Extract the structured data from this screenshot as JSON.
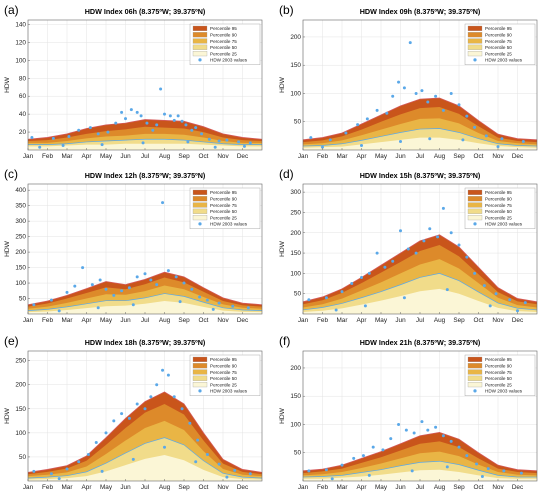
{
  "legend_labels": [
    "Percentile 95",
    "Percentile 90",
    "Percentile 75",
    "Percentile 50",
    "Percentile 25"
  ],
  "scatter_label": "HDW 2003 values",
  "colors": {
    "p95": "#c9551b",
    "p90": "#dd8a2a",
    "p75": "#e9b545",
    "p50": "#f1dc8a",
    "p25": "#fbf6d6",
    "envelope": "#d45858",
    "scatter": "#5aa8e8",
    "median_line": "#5aa8e8"
  },
  "chart_data": [
    {
      "letter": "(a)",
      "type": "area",
      "title": "HDW Index 06h (8.375ºW; 39.375ºN)",
      "ylabel": "HDW",
      "xlabels": [
        "Jan",
        "Feb",
        "Mar",
        "Apr",
        "May",
        "Jun",
        "Jul",
        "Aug",
        "Sep",
        "Oct",
        "Nov",
        "Dec"
      ],
      "yticks": [
        20,
        40,
        60,
        80,
        100,
        120,
        140
      ],
      "ylim": [
        0,
        145
      ],
      "x_months": [
        1,
        2,
        3,
        4,
        5,
        6,
        7,
        8,
        9,
        10,
        11,
        12,
        13
      ],
      "p95": [
        12,
        14,
        18,
        24,
        28,
        30,
        34,
        33,
        32,
        26,
        18,
        14,
        12
      ],
      "p90": [
        10,
        11,
        14,
        18,
        21,
        23,
        26,
        25,
        24,
        20,
        14,
        11,
        10
      ],
      "p75": [
        8,
        8,
        10,
        13,
        15,
        16,
        18,
        18,
        17,
        14,
        10,
        8,
        8
      ],
      "p50": [
        6,
        6,
        7,
        9,
        10,
        11,
        12,
        12,
        11,
        9,
        7,
        6,
        6
      ],
      "p25": [
        4,
        4,
        5,
        6,
        6,
        7,
        7,
        7,
        7,
        6,
        5,
        4,
        4
      ],
      "scatter": [
        [
          1.2,
          14
        ],
        [
          2.3,
          13
        ],
        [
          3.1,
          15
        ],
        [
          3.6,
          22
        ],
        [
          4.2,
          25
        ],
        [
          4.6,
          18
        ],
        [
          5.1,
          20
        ],
        [
          5.5,
          30
        ],
        [
          5.8,
          42
        ],
        [
          6.0,
          35
        ],
        [
          6.3,
          45
        ],
        [
          6.6,
          42
        ],
        [
          6.8,
          38
        ],
        [
          7.1,
          30
        ],
        [
          7.4,
          22
        ],
        [
          7.6,
          28
        ],
        [
          7.8,
          68
        ],
        [
          8.0,
          40
        ],
        [
          8.3,
          38
        ],
        [
          8.5,
          33
        ],
        [
          8.7,
          38
        ],
        [
          8.9,
          32
        ],
        [
          9.1,
          28
        ],
        [
          9.4,
          22
        ],
        [
          9.6,
          25
        ],
        [
          9.9,
          18
        ],
        [
          10.3,
          12
        ],
        [
          10.8,
          10
        ],
        [
          11.2,
          11
        ],
        [
          11.8,
          9
        ],
        [
          12.4,
          8
        ],
        [
          1.6,
          3
        ],
        [
          2.8,
          5
        ],
        [
          4.8,
          6
        ],
        [
          6.9,
          8
        ],
        [
          9.2,
          9
        ],
        [
          10.6,
          3
        ],
        [
          12.1,
          4
        ]
      ]
    },
    {
      "letter": "(b)",
      "type": "area",
      "title": "HDW Index 09h (8.375ºW; 39.375ºN)",
      "ylabel": "HDW",
      "xlabels": [
        "Jan",
        "Feb",
        "Mar",
        "Apr",
        "May",
        "Jun",
        "Jul",
        "Aug",
        "Sep",
        "Oct",
        "Nov",
        "Dec"
      ],
      "yticks": [
        50,
        100,
        150,
        200
      ],
      "ylim": [
        0,
        230
      ],
      "x_months": [
        1,
        2,
        3,
        4,
        5,
        6,
        7,
        8,
        9,
        10,
        11,
        12,
        13
      ],
      "p95": [
        18,
        22,
        30,
        46,
        62,
        78,
        90,
        92,
        78,
        52,
        28,
        20,
        18
      ],
      "p90": [
        14,
        17,
        24,
        36,
        50,
        63,
        74,
        76,
        64,
        42,
        22,
        16,
        14
      ],
      "p75": [
        10,
        12,
        17,
        26,
        36,
        46,
        55,
        56,
        47,
        30,
        16,
        12,
        10
      ],
      "p50": [
        7,
        8,
        11,
        17,
        24,
        31,
        37,
        38,
        31,
        20,
        11,
        8,
        7
      ],
      "p25": [
        4,
        5,
        6,
        10,
        14,
        18,
        22,
        22,
        18,
        12,
        7,
        5,
        4
      ],
      "scatter": [
        [
          1.4,
          22
        ],
        [
          2.4,
          18
        ],
        [
          3.2,
          30
        ],
        [
          3.8,
          45
        ],
        [
          4.3,
          55
        ],
        [
          4.8,
          70
        ],
        [
          5.3,
          65
        ],
        [
          5.6,
          95
        ],
        [
          5.9,
          120
        ],
        [
          6.2,
          110
        ],
        [
          6.5,
          190
        ],
        [
          6.8,
          100
        ],
        [
          7.1,
          105
        ],
        [
          7.4,
          85
        ],
        [
          7.8,
          95
        ],
        [
          8.2,
          70
        ],
        [
          8.6,
          100
        ],
        [
          9.0,
          80
        ],
        [
          9.4,
          60
        ],
        [
          9.8,
          40
        ],
        [
          10.4,
          25
        ],
        [
          11.2,
          20
        ],
        [
          12.3,
          15
        ],
        [
          2.0,
          5
        ],
        [
          4.0,
          8
        ],
        [
          6.0,
          15
        ],
        [
          7.5,
          20
        ],
        [
          9.2,
          18
        ],
        [
          11.0,
          6
        ]
      ]
    },
    {
      "letter": "(c)",
      "type": "area",
      "title": "HDW Index 12h (8.375ºW; 39.375ºN)",
      "ylabel": "HDW",
      "xlabels": [
        "Jan",
        "Feb",
        "Mar",
        "Apr",
        "May",
        "Jun",
        "Jul",
        "Aug",
        "Sep",
        "Oct",
        "Nov",
        "Dec"
      ],
      "yticks": [
        50,
        100,
        150,
        200,
        250,
        300,
        350,
        400
      ],
      "ylim": [
        0,
        420
      ],
      "x_months": [
        1,
        2,
        3,
        4,
        5,
        6,
        7,
        8,
        9,
        10,
        11,
        12,
        13
      ],
      "p95": [
        30,
        42,
        60,
        82,
        105,
        95,
        112,
        135,
        120,
        85,
        52,
        35,
        30
      ],
      "p90": [
        24,
        34,
        50,
        68,
        86,
        80,
        96,
        118,
        102,
        72,
        42,
        28,
        24
      ],
      "p75": [
        17,
        24,
        36,
        50,
        64,
        62,
        74,
        92,
        80,
        55,
        31,
        20,
        17
      ],
      "p50": [
        11,
        15,
        23,
        33,
        43,
        43,
        52,
        66,
        57,
        38,
        20,
        13,
        11
      ],
      "p25": [
        6,
        8,
        13,
        19,
        25,
        27,
        33,
        42,
        36,
        23,
        11,
        7,
        6
      ],
      "scatter": [
        [
          1.3,
          30
        ],
        [
          2.2,
          45
        ],
        [
          3.0,
          70
        ],
        [
          3.4,
          90
        ],
        [
          3.8,
          150
        ],
        [
          4.3,
          95
        ],
        [
          4.7,
          110
        ],
        [
          5.0,
          80
        ],
        [
          5.4,
          60
        ],
        [
          5.8,
          75
        ],
        [
          6.2,
          85
        ],
        [
          6.6,
          120
        ],
        [
          7.0,
          130
        ],
        [
          7.3,
          110
        ],
        [
          7.6,
          95
        ],
        [
          7.9,
          360
        ],
        [
          8.2,
          140
        ],
        [
          8.6,
          120
        ],
        [
          9.0,
          100
        ],
        [
          9.4,
          80
        ],
        [
          9.8,
          55
        ],
        [
          10.2,
          45
        ],
        [
          10.8,
          35
        ],
        [
          11.5,
          25
        ],
        [
          12.3,
          20
        ],
        [
          2.6,
          10
        ],
        [
          4.6,
          20
        ],
        [
          6.4,
          30
        ],
        [
          8.8,
          40
        ],
        [
          10.5,
          15
        ]
      ]
    },
    {
      "letter": "(d)",
      "type": "area",
      "title": "HDW Index 15h (8.375ºW; 39.375ºN)",
      "ylabel": "HDW",
      "xlabels": [
        "Jan",
        "Feb",
        "Mar",
        "Apr",
        "May",
        "Jun",
        "Jul",
        "Aug",
        "Sep",
        "Oct",
        "Nov",
        "Dec"
      ],
      "yticks": [
        50,
        100,
        150,
        200,
        250,
        300
      ],
      "ylim": [
        0,
        320
      ],
      "x_months": [
        1,
        2,
        3,
        4,
        5,
        6,
        7,
        8,
        9,
        10,
        11,
        12,
        13
      ],
      "p95": [
        30,
        42,
        62,
        90,
        120,
        150,
        180,
        195,
        165,
        115,
        65,
        38,
        30
      ],
      "p90": [
        24,
        34,
        52,
        76,
        102,
        128,
        155,
        170,
        142,
        98,
        54,
        31,
        24
      ],
      "p75": [
        16,
        24,
        38,
        58,
        78,
        100,
        122,
        135,
        112,
        76,
        40,
        22,
        16
      ],
      "p50": [
        10,
        16,
        26,
        40,
        55,
        72,
        90,
        100,
        82,
        54,
        27,
        14,
        10
      ],
      "p25": [
        5,
        8,
        14,
        23,
        33,
        44,
        56,
        62,
        50,
        32,
        15,
        7,
        5
      ],
      "scatter": [
        [
          1.3,
          35
        ],
        [
          2.2,
          40
        ],
        [
          3.0,
          55
        ],
        [
          3.5,
          75
        ],
        [
          4.0,
          90
        ],
        [
          4.4,
          100
        ],
        [
          4.8,
          150
        ],
        [
          5.2,
          115
        ],
        [
          5.6,
          130
        ],
        [
          6.0,
          205
        ],
        [
          6.4,
          160
        ],
        [
          6.8,
          150
        ],
        [
          7.2,
          180
        ],
        [
          7.5,
          210
        ],
        [
          7.9,
          190
        ],
        [
          8.2,
          260
        ],
        [
          8.6,
          200
        ],
        [
          9.0,
          170
        ],
        [
          9.4,
          140
        ],
        [
          9.8,
          100
        ],
        [
          10.3,
          70
        ],
        [
          10.9,
          50
        ],
        [
          11.6,
          35
        ],
        [
          12.4,
          28
        ],
        [
          2.7,
          10
        ],
        [
          4.2,
          20
        ],
        [
          6.2,
          40
        ],
        [
          8.4,
          60
        ],
        [
          10.6,
          20
        ],
        [
          12.0,
          8
        ]
      ]
    },
    {
      "letter": "(e)",
      "type": "area",
      "title": "HDW Index 18h (8.375ºW; 39.375ºN)",
      "ylabel": "HDW",
      "xlabels": [
        "Jan",
        "Feb",
        "Mar",
        "Apr",
        "May",
        "Jun",
        "Jul",
        "Aug",
        "Sep",
        "Oct",
        "Nov",
        "Dec"
      ],
      "yticks": [
        50,
        100,
        150,
        200,
        250
      ],
      "ylim": [
        0,
        270
      ],
      "x_months": [
        1,
        2,
        3,
        4,
        5,
        6,
        7,
        8,
        9,
        10,
        11,
        12,
        13
      ],
      "p95": [
        18,
        24,
        32,
        52,
        90,
        130,
        165,
        185,
        160,
        100,
        45,
        24,
        18
      ],
      "p90": [
        14,
        19,
        26,
        42,
        75,
        110,
        142,
        160,
        138,
        84,
        36,
        19,
        14
      ],
      "p75": [
        10,
        13,
        18,
        30,
        56,
        84,
        110,
        125,
        106,
        62,
        25,
        13,
        10
      ],
      "p50": [
        6,
        8,
        11,
        19,
        37,
        58,
        78,
        90,
        75,
        42,
        16,
        8,
        6
      ],
      "p25": [
        3,
        4,
        6,
        10,
        20,
        33,
        46,
        54,
        43,
        23,
        8,
        4,
        3
      ],
      "scatter": [
        [
          1.3,
          20
        ],
        [
          2.2,
          15
        ],
        [
          3.0,
          25
        ],
        [
          3.6,
          40
        ],
        [
          4.1,
          55
        ],
        [
          4.5,
          80
        ],
        [
          5.0,
          100
        ],
        [
          5.4,
          125
        ],
        [
          5.8,
          140
        ],
        [
          6.2,
          130
        ],
        [
          6.6,
          160
        ],
        [
          7.0,
          150
        ],
        [
          7.3,
          175
        ],
        [
          7.6,
          200
        ],
        [
          7.9,
          230
        ],
        [
          8.2,
          220
        ],
        [
          8.5,
          175
        ],
        [
          8.9,
          150
        ],
        [
          9.3,
          120
        ],
        [
          9.7,
          85
        ],
        [
          10.2,
          55
        ],
        [
          10.8,
          35
        ],
        [
          11.6,
          22
        ],
        [
          12.4,
          15
        ],
        [
          2.6,
          5
        ],
        [
          4.8,
          20
        ],
        [
          6.4,
          45
        ],
        [
          8.0,
          70
        ],
        [
          9.6,
          40
        ],
        [
          11.2,
          8
        ]
      ]
    },
    {
      "letter": "(f)",
      "type": "area",
      "title": "HDW Index 21h (8.375ºW; 39.375ºN)",
      "ylabel": "HDW",
      "xlabels": [
        "Jan",
        "Feb",
        "Mar",
        "Apr",
        "May",
        "Jun",
        "Jul",
        "Aug",
        "Sep",
        "Oct",
        "Nov",
        "Dec"
      ],
      "yticks": [
        50,
        100,
        150,
        200
      ],
      "ylim": [
        0,
        230
      ],
      "x_months": [
        1,
        2,
        3,
        4,
        5,
        6,
        7,
        8,
        9,
        10,
        11,
        12,
        13
      ],
      "p95": [
        18,
        21,
        28,
        40,
        52,
        66,
        80,
        86,
        74,
        50,
        28,
        20,
        18
      ],
      "p90": [
        14,
        17,
        22,
        32,
        42,
        54,
        66,
        70,
        60,
        40,
        22,
        16,
        14
      ],
      "p75": [
        10,
        12,
        16,
        23,
        31,
        40,
        49,
        52,
        44,
        29,
        16,
        11,
        10
      ],
      "p50": [
        7,
        8,
        10,
        15,
        20,
        27,
        33,
        35,
        29,
        19,
        10,
        7,
        7
      ],
      "p25": [
        4,
        4,
        6,
        8,
        11,
        15,
        19,
        20,
        16,
        10,
        5,
        4,
        4
      ],
      "scatter": [
        [
          1.3,
          18
        ],
        [
          2.2,
          20
        ],
        [
          3.0,
          28
        ],
        [
          3.6,
          40
        ],
        [
          4.1,
          45
        ],
        [
          4.6,
          60
        ],
        [
          5.1,
          55
        ],
        [
          5.5,
          75
        ],
        [
          5.9,
          100
        ],
        [
          6.3,
          90
        ],
        [
          6.7,
          85
        ],
        [
          7.1,
          105
        ],
        [
          7.4,
          90
        ],
        [
          7.8,
          95
        ],
        [
          8.2,
          80
        ],
        [
          8.6,
          70
        ],
        [
          9.0,
          60
        ],
        [
          9.4,
          45
        ],
        [
          9.9,
          30
        ],
        [
          10.5,
          22
        ],
        [
          11.3,
          18
        ],
        [
          12.2,
          14
        ],
        [
          2.5,
          4
        ],
        [
          4.4,
          10
        ],
        [
          6.6,
          18
        ],
        [
          8.4,
          25
        ],
        [
          10.2,
          8
        ]
      ]
    }
  ]
}
